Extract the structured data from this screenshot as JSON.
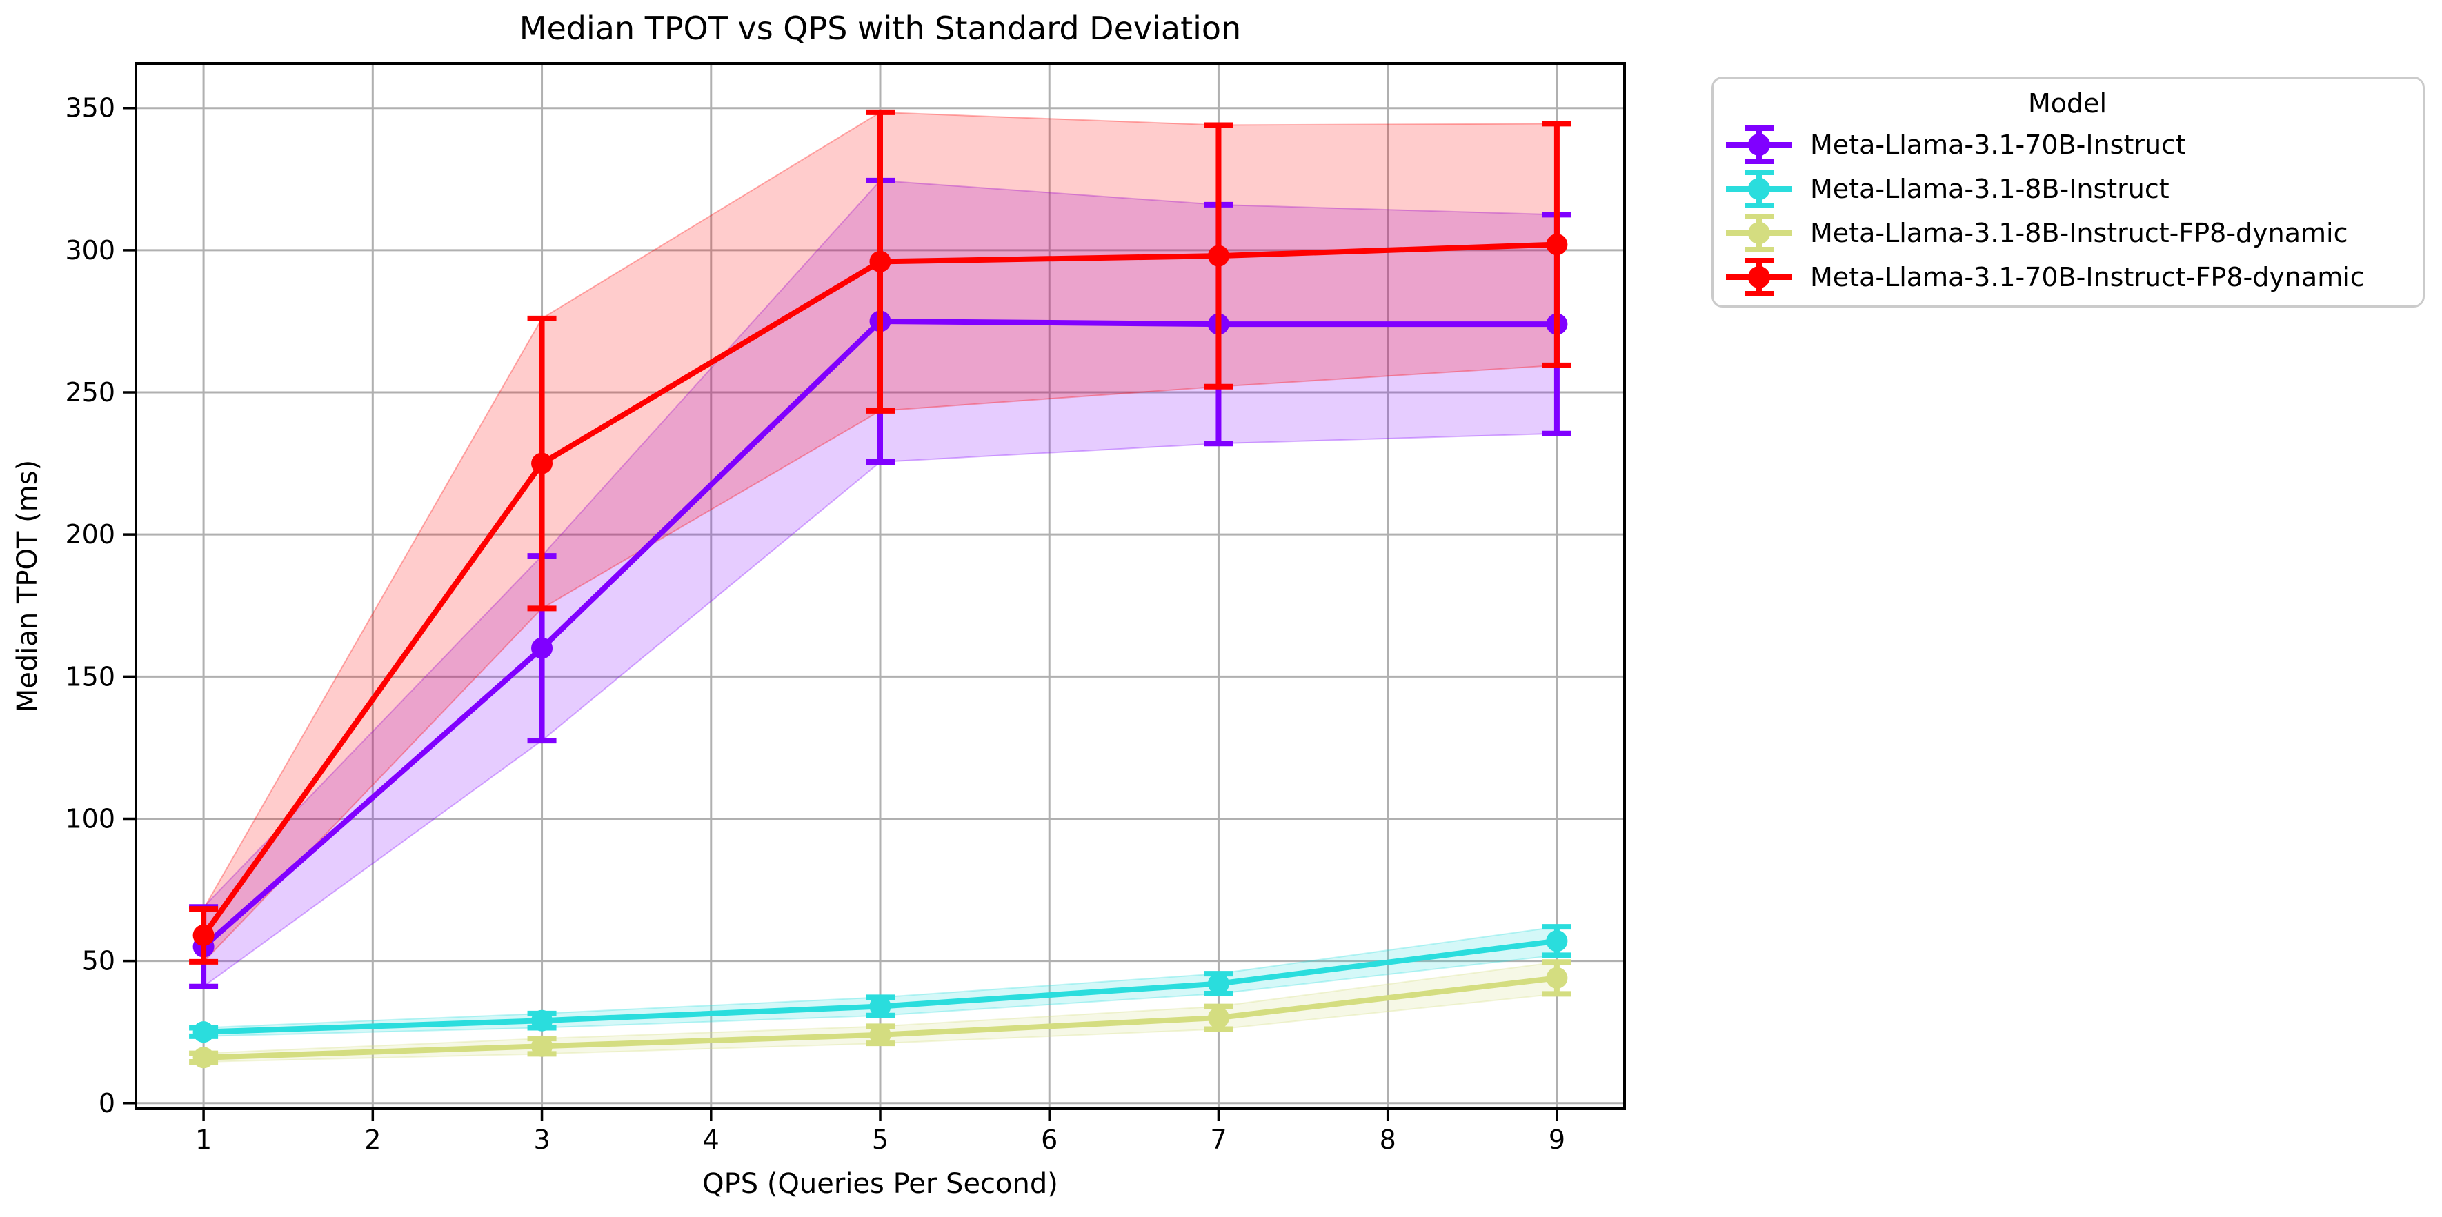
{
  "chart_data": {
    "type": "line",
    "title": "Median TPOT vs QPS with Standard Deviation",
    "xlabel": "QPS (Queries Per Second)",
    "ylabel": "Median TPOT (ms)",
    "x": [
      1,
      3,
      5,
      7,
      9
    ],
    "x_ticks": [
      1,
      2,
      3,
      4,
      5,
      6,
      7,
      8,
      9
    ],
    "y_ticks": [
      0,
      50,
      100,
      150,
      200,
      250,
      300,
      350
    ],
    "xlim": [
      0.6,
      9.4
    ],
    "ylim": [
      -2,
      365.7
    ],
    "grid": true,
    "grid_color": "#b0b0b0",
    "band_style": "mean ± 1 std dev shaded, alpha 0.2",
    "error_bars": "± 1 std dev with caps",
    "marker": "circle",
    "legend": {
      "title": "Model",
      "location": "outside upper right"
    },
    "series": [
      {
        "name": "Meta-Llama-3.1-70B-Instruct",
        "color": "#8000FF",
        "mean": [
          55,
          160,
          275,
          274,
          274
        ],
        "std": [
          14,
          32.5,
          49.5,
          42,
          38.5
        ]
      },
      {
        "name": "Meta-Llama-3.1-8B-Instruct",
        "color": "#2ADDDD",
        "mean": [
          25,
          29,
          34,
          42,
          57
        ],
        "std": [
          1.5,
          2.5,
          3.2,
          3.5,
          5
        ]
      },
      {
        "name": "Meta-Llama-3.1-8B-Instruct-FP8-dynamic",
        "color": "#D4DD80",
        "mean": [
          16,
          20,
          24,
          30,
          44
        ],
        "std": [
          1.5,
          2.7,
          3,
          4,
          5.6
        ]
      },
      {
        "name": "Meta-Llama-3.1-70B-Instruct-FP8-dynamic",
        "color": "#FF0000",
        "mean": [
          59,
          225,
          296,
          298,
          302
        ],
        "std": [
          9.3,
          51,
          52.5,
          46,
          42.5
        ]
      }
    ]
  }
}
